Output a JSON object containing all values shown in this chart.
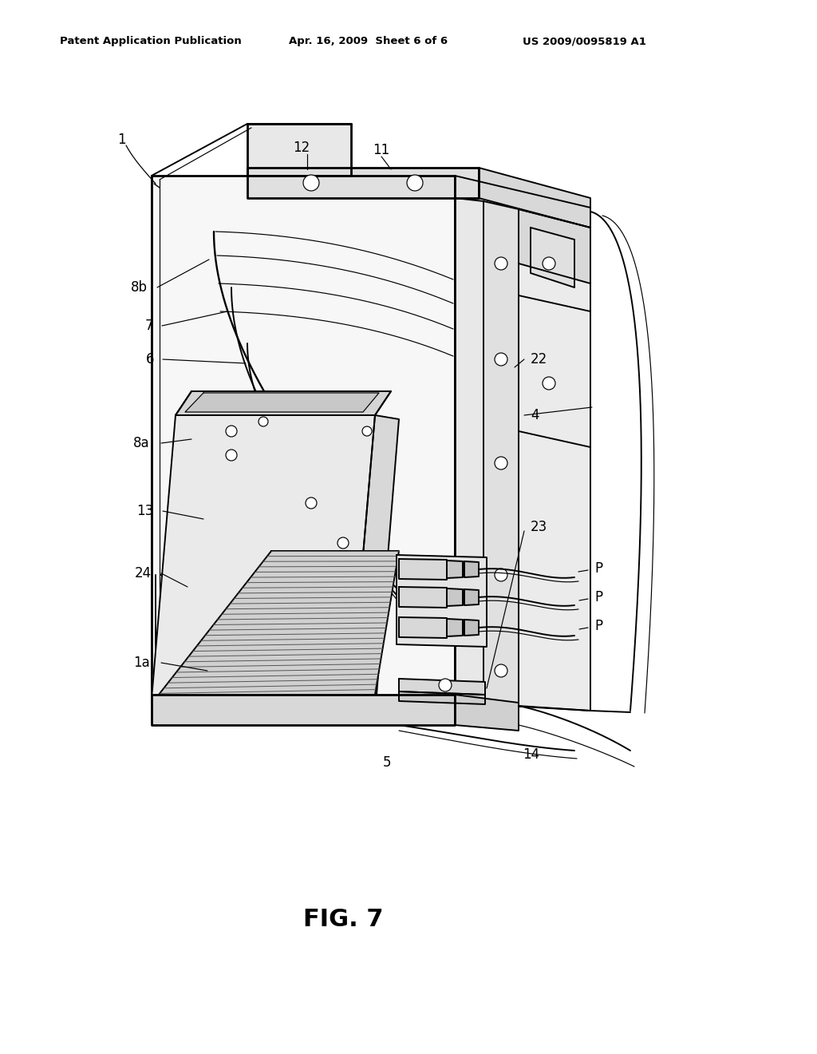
{
  "header_left": "Patent Application Publication",
  "header_mid": "Apr. 16, 2009  Sheet 6 of 6",
  "header_right": "US 2009/0095819 A1",
  "fig_caption": "FIG. 7",
  "bg": "#ffffff",
  "lw": 1.4,
  "lwt": 0.85,
  "lwk": 2.0
}
